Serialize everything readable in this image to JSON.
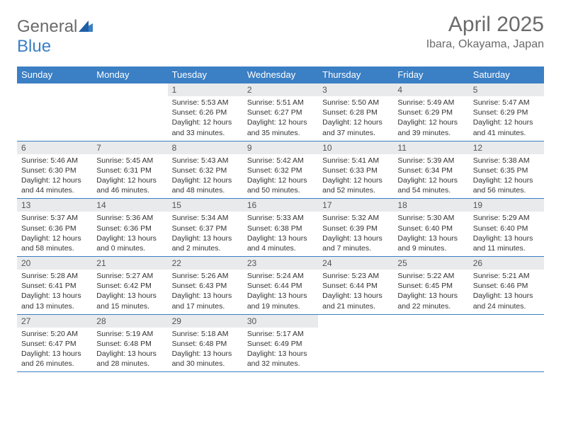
{
  "logo": {
    "text_general": "General",
    "text_blue": "Blue"
  },
  "title": "April 2025",
  "location": "Ibara, Okayama, Japan",
  "colors": {
    "header_bg": "#3b7fc4",
    "daynum_bg": "#e9eaec",
    "text": "#333333",
    "title_text": "#6b6b6b"
  },
  "day_names": [
    "Sunday",
    "Monday",
    "Tuesday",
    "Wednesday",
    "Thursday",
    "Friday",
    "Saturday"
  ],
  "weeks": [
    [
      null,
      null,
      {
        "n": "1",
        "sr": "Sunrise: 5:53 AM",
        "ss": "Sunset: 6:26 PM",
        "d1": "Daylight: 12 hours",
        "d2": "and 33 minutes."
      },
      {
        "n": "2",
        "sr": "Sunrise: 5:51 AM",
        "ss": "Sunset: 6:27 PM",
        "d1": "Daylight: 12 hours",
        "d2": "and 35 minutes."
      },
      {
        "n": "3",
        "sr": "Sunrise: 5:50 AM",
        "ss": "Sunset: 6:28 PM",
        "d1": "Daylight: 12 hours",
        "d2": "and 37 minutes."
      },
      {
        "n": "4",
        "sr": "Sunrise: 5:49 AM",
        "ss": "Sunset: 6:29 PM",
        "d1": "Daylight: 12 hours",
        "d2": "and 39 minutes."
      },
      {
        "n": "5",
        "sr": "Sunrise: 5:47 AM",
        "ss": "Sunset: 6:29 PM",
        "d1": "Daylight: 12 hours",
        "d2": "and 41 minutes."
      }
    ],
    [
      {
        "n": "6",
        "sr": "Sunrise: 5:46 AM",
        "ss": "Sunset: 6:30 PM",
        "d1": "Daylight: 12 hours",
        "d2": "and 44 minutes."
      },
      {
        "n": "7",
        "sr": "Sunrise: 5:45 AM",
        "ss": "Sunset: 6:31 PM",
        "d1": "Daylight: 12 hours",
        "d2": "and 46 minutes."
      },
      {
        "n": "8",
        "sr": "Sunrise: 5:43 AM",
        "ss": "Sunset: 6:32 PM",
        "d1": "Daylight: 12 hours",
        "d2": "and 48 minutes."
      },
      {
        "n": "9",
        "sr": "Sunrise: 5:42 AM",
        "ss": "Sunset: 6:32 PM",
        "d1": "Daylight: 12 hours",
        "d2": "and 50 minutes."
      },
      {
        "n": "10",
        "sr": "Sunrise: 5:41 AM",
        "ss": "Sunset: 6:33 PM",
        "d1": "Daylight: 12 hours",
        "d2": "and 52 minutes."
      },
      {
        "n": "11",
        "sr": "Sunrise: 5:39 AM",
        "ss": "Sunset: 6:34 PM",
        "d1": "Daylight: 12 hours",
        "d2": "and 54 minutes."
      },
      {
        "n": "12",
        "sr": "Sunrise: 5:38 AM",
        "ss": "Sunset: 6:35 PM",
        "d1": "Daylight: 12 hours",
        "d2": "and 56 minutes."
      }
    ],
    [
      {
        "n": "13",
        "sr": "Sunrise: 5:37 AM",
        "ss": "Sunset: 6:36 PM",
        "d1": "Daylight: 12 hours",
        "d2": "and 58 minutes."
      },
      {
        "n": "14",
        "sr": "Sunrise: 5:36 AM",
        "ss": "Sunset: 6:36 PM",
        "d1": "Daylight: 13 hours",
        "d2": "and 0 minutes."
      },
      {
        "n": "15",
        "sr": "Sunrise: 5:34 AM",
        "ss": "Sunset: 6:37 PM",
        "d1": "Daylight: 13 hours",
        "d2": "and 2 minutes."
      },
      {
        "n": "16",
        "sr": "Sunrise: 5:33 AM",
        "ss": "Sunset: 6:38 PM",
        "d1": "Daylight: 13 hours",
        "d2": "and 4 minutes."
      },
      {
        "n": "17",
        "sr": "Sunrise: 5:32 AM",
        "ss": "Sunset: 6:39 PM",
        "d1": "Daylight: 13 hours",
        "d2": "and 7 minutes."
      },
      {
        "n": "18",
        "sr": "Sunrise: 5:30 AM",
        "ss": "Sunset: 6:40 PM",
        "d1": "Daylight: 13 hours",
        "d2": "and 9 minutes."
      },
      {
        "n": "19",
        "sr": "Sunrise: 5:29 AM",
        "ss": "Sunset: 6:40 PM",
        "d1": "Daylight: 13 hours",
        "d2": "and 11 minutes."
      }
    ],
    [
      {
        "n": "20",
        "sr": "Sunrise: 5:28 AM",
        "ss": "Sunset: 6:41 PM",
        "d1": "Daylight: 13 hours",
        "d2": "and 13 minutes."
      },
      {
        "n": "21",
        "sr": "Sunrise: 5:27 AM",
        "ss": "Sunset: 6:42 PM",
        "d1": "Daylight: 13 hours",
        "d2": "and 15 minutes."
      },
      {
        "n": "22",
        "sr": "Sunrise: 5:26 AM",
        "ss": "Sunset: 6:43 PM",
        "d1": "Daylight: 13 hours",
        "d2": "and 17 minutes."
      },
      {
        "n": "23",
        "sr": "Sunrise: 5:24 AM",
        "ss": "Sunset: 6:44 PM",
        "d1": "Daylight: 13 hours",
        "d2": "and 19 minutes."
      },
      {
        "n": "24",
        "sr": "Sunrise: 5:23 AM",
        "ss": "Sunset: 6:44 PM",
        "d1": "Daylight: 13 hours",
        "d2": "and 21 minutes."
      },
      {
        "n": "25",
        "sr": "Sunrise: 5:22 AM",
        "ss": "Sunset: 6:45 PM",
        "d1": "Daylight: 13 hours",
        "d2": "and 22 minutes."
      },
      {
        "n": "26",
        "sr": "Sunrise: 5:21 AM",
        "ss": "Sunset: 6:46 PM",
        "d1": "Daylight: 13 hours",
        "d2": "and 24 minutes."
      }
    ],
    [
      {
        "n": "27",
        "sr": "Sunrise: 5:20 AM",
        "ss": "Sunset: 6:47 PM",
        "d1": "Daylight: 13 hours",
        "d2": "and 26 minutes."
      },
      {
        "n": "28",
        "sr": "Sunrise: 5:19 AM",
        "ss": "Sunset: 6:48 PM",
        "d1": "Daylight: 13 hours",
        "d2": "and 28 minutes."
      },
      {
        "n": "29",
        "sr": "Sunrise: 5:18 AM",
        "ss": "Sunset: 6:48 PM",
        "d1": "Daylight: 13 hours",
        "d2": "and 30 minutes."
      },
      {
        "n": "30",
        "sr": "Sunrise: 5:17 AM",
        "ss": "Sunset: 6:49 PM",
        "d1": "Daylight: 13 hours",
        "d2": "and 32 minutes."
      },
      null,
      null,
      null
    ]
  ]
}
